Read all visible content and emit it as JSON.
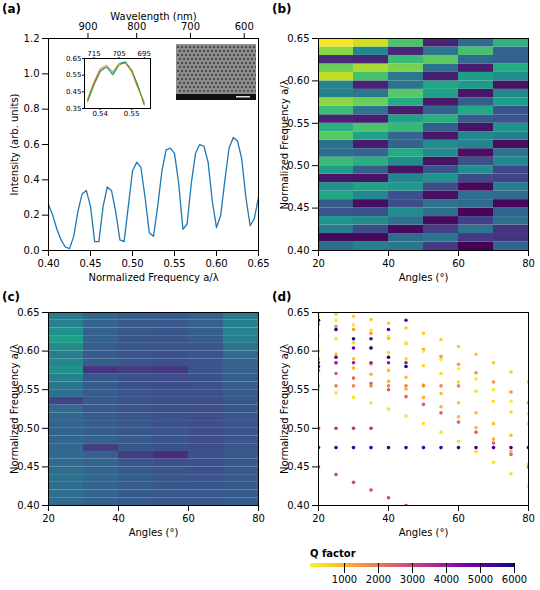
{
  "chart_data": [
    {
      "type": "line",
      "title": "(a)",
      "x_label": "Normalized Frequency a/λ",
      "y_label": "Intensity (arb. units)",
      "x2_label": "Wavelength (nm)",
      "xlim": [
        0.4,
        0.65
      ],
      "xticks": [
        {
          "value": 0.4,
          "label": "0.40"
        },
        0.45,
        {
          "value": 0.5,
          "label": "0.50"
        },
        0.55,
        {
          "value": 0.6,
          "label": "0.60"
        },
        0.65
      ],
      "x2ticks": [
        {
          "value": 0.447,
          "label": "900"
        },
        {
          "value": 0.505,
          "label": "800"
        },
        {
          "value": 0.569,
          "label": "700"
        },
        {
          "value": 0.633,
          "label": "600"
        }
      ],
      "ylim": [
        0,
        1.2
      ],
      "yticks": [
        {
          "value": 0,
          "label": "0.0"
        },
        0.2,
        0.4,
        0.6,
        0.8,
        {
          "value": 1,
          "label": "1.0"
        },
        1.2
      ],
      "color": "#1f77b4",
      "x": [
        0.4,
        0.405,
        0.41,
        0.415,
        0.42,
        0.425,
        0.43,
        0.435,
        0.44,
        0.445,
        0.45,
        0.455,
        0.46,
        0.465,
        0.47,
        0.475,
        0.48,
        0.485,
        0.49,
        0.495,
        0.5,
        0.505,
        0.51,
        0.515,
        0.52,
        0.525,
        0.53,
        0.535,
        0.54,
        0.545,
        0.55,
        0.555,
        0.56,
        0.565,
        0.57,
        0.575,
        0.58,
        0.585,
        0.59,
        0.595,
        0.6,
        0.605,
        0.61,
        0.615,
        0.62,
        0.625,
        0.63,
        0.635,
        0.64,
        0.645,
        0.65
      ],
      "values": [
        0.26,
        0.2,
        0.12,
        0.06,
        0.02,
        0.01,
        0.08,
        0.22,
        0.32,
        0.34,
        0.25,
        0.05,
        0.05,
        0.25,
        0.36,
        0.34,
        0.22,
        0.06,
        0.05,
        0.25,
        0.45,
        0.5,
        0.47,
        0.3,
        0.1,
        0.08,
        0.25,
        0.45,
        0.57,
        0.58,
        0.55,
        0.38,
        0.12,
        0.15,
        0.38,
        0.55,
        0.6,
        0.59,
        0.5,
        0.28,
        0.13,
        0.2,
        0.4,
        0.58,
        0.64,
        0.62,
        0.52,
        0.3,
        0.14,
        0.18,
        0.3
      ]
    },
    {
      "type": "line",
      "xlim": [
        0.535,
        0.556
      ],
      "xticks": [
        0.54,
        0.55
      ],
      "x2ticks": [
        {
          "value": 0.538,
          "label": "715"
        },
        {
          "value": 0.546,
          "label": "705"
        },
        {
          "value": 0.554,
          "label": "695"
        }
      ],
      "ylim": [
        0.35,
        0.65
      ],
      "yticks": [
        0.35,
        0.45,
        0.55,
        0.65
      ],
      "x": [
        0.536,
        0.538,
        0.54,
        0.542,
        0.544,
        0.546,
        0.548,
        0.55,
        0.552,
        0.554
      ],
      "series": [
        {
          "color": "#1f77b4",
          "values": [
            0.4,
            0.5,
            0.58,
            0.6,
            0.56,
            0.62,
            0.63,
            0.58,
            0.48,
            0.38
          ]
        },
        {
          "color": "#ff7f0e",
          "values": [
            0.41,
            0.51,
            0.59,
            0.61,
            0.57,
            0.62,
            0.62,
            0.57,
            0.47,
            0.39
          ]
        },
        {
          "color": "#2ca02c",
          "values": [
            0.39,
            0.49,
            0.57,
            0.6,
            0.55,
            0.61,
            0.63,
            0.58,
            0.49,
            0.37
          ]
        }
      ]
    },
    {
      "type": "heatmap",
      "title": "(b)",
      "x_label": "Angles (°)",
      "y_label": "Normalized Frequency a/λ",
      "xlim": [
        20,
        80
      ],
      "xticks": [
        20,
        40,
        60,
        80
      ],
      "ylim": [
        0.4,
        0.65
      ],
      "yticks": [
        {
          "value": 0.4,
          "label": "0.40"
        },
        0.45,
        {
          "value": 0.5,
          "label": "0.50"
        },
        0.55,
        {
          "value": 0.6,
          "label": "0.60"
        },
        0.65
      ],
      "x_edges": [
        20,
        30,
        40,
        50,
        60,
        70,
        80
      ],
      "y_edges": [
        0.4,
        0.41,
        0.42,
        0.43,
        0.44,
        0.45,
        0.46,
        0.47,
        0.48,
        0.49,
        0.5,
        0.51,
        0.52,
        0.53,
        0.54,
        0.55,
        0.56,
        0.57,
        0.58,
        0.59,
        0.6,
        0.61,
        0.62,
        0.63,
        0.64,
        0.65
      ],
      "cells": [
        [
          0.38,
          0.43,
          0.41,
          0.21,
          0.07,
          0.35
        ],
        [
          0.09,
          0.09,
          0.37,
          0.4,
          0.21,
          0.2
        ],
        [
          0.42,
          0.26,
          0.09,
          0.23,
          0.4,
          0.2
        ],
        [
          0.51,
          0.48,
          0.39,
          0.09,
          0.23,
          0.38
        ],
        [
          0.29,
          0.28,
          0.48,
          0.38,
          0.08,
          0.34
        ],
        [
          0.3,
          0.1,
          0.27,
          0.39,
          0.37,
          0.08
        ],
        [
          0.57,
          0.46,
          0.28,
          0.1,
          0.38,
          0.36
        ],
        [
          0.5,
          0.56,
          0.52,
          0.27,
          0.09,
          0.43
        ],
        [
          0.12,
          0.11,
          0.46,
          0.51,
          0.26,
          0.24
        ],
        [
          0.54,
          0.32,
          0.11,
          0.29,
          0.49,
          0.25
        ],
        [
          0.65,
          0.61,
          0.48,
          0.11,
          0.28,
          0.46
        ],
        [
          0.37,
          0.35,
          0.59,
          0.47,
          0.1,
          0.4
        ],
        [
          0.38,
          0.13,
          0.34,
          0.48,
          0.45,
          0.1
        ],
        [
          0.7,
          0.56,
          0.34,
          0.12,
          0.46,
          0.43
        ],
        [
          0.61,
          0.68,
          0.64,
          0.32,
          0.11,
          0.51
        ],
        [
          0.15,
          0.14,
          0.55,
          0.61,
          0.31,
          0.29
        ],
        [
          0.65,
          0.4,
          0.13,
          0.34,
          0.58,
          0.29
        ],
        [
          0.78,
          0.73,
          0.59,
          0.13,
          0.32,
          0.54
        ],
        [
          0.44,
          0.41,
          0.7,
          0.55,
          0.12,
          0.47
        ],
        [
          0.45,
          0.15,
          0.4,
          0.57,
          0.53,
          0.11
        ],
        [
          0.84,
          0.67,
          0.41,
          0.14,
          0.54,
          0.49
        ],
        [
          0.73,
          0.81,
          0.75,
          0.39,
          0.13,
          0.59
        ],
        [
          0.18,
          0.16,
          0.65,
          0.71,
          0.36,
          0.33
        ],
        [
          0.77,
          0.46,
          0.16,
          0.4,
          0.67,
          0.34
        ],
        [
          0.92,
          0.86,
          0.68,
          0.15,
          0.37,
          0.62
        ]
      ]
    },
    {
      "type": "heatmap",
      "title": "(c)",
      "x_label": "Angles (°)",
      "y_label": "Normalized Frequency a/λ",
      "xlim": [
        20,
        80
      ],
      "xticks": [
        20,
        40,
        60,
        80
      ],
      "ylim": [
        0.4,
        0.65
      ],
      "yticks": [
        {
          "value": 0.4,
          "label": "0.40"
        },
        0.45,
        {
          "value": 0.5,
          "label": "0.50"
        },
        0.55,
        {
          "value": 0.6,
          "label": "0.60"
        },
        0.65
      ],
      "x_edges": [
        20,
        30,
        40,
        50,
        60,
        70,
        80
      ],
      "y_edges": [
        0.4,
        0.41,
        0.42,
        0.43,
        0.44,
        0.45,
        0.46,
        0.47,
        0.48,
        0.49,
        0.5,
        0.51,
        0.52,
        0.53,
        0.54,
        0.55,
        0.56,
        0.57,
        0.58,
        0.59,
        0.6,
        0.61,
        0.62,
        0.63,
        0.64,
        0.65
      ],
      "cells": [
        [
          0.36,
          0.33,
          0.31,
          0.3,
          0.3,
          0.32
        ],
        [
          0.37,
          0.34,
          0.31,
          0.3,
          0.3,
          0.31
        ],
        [
          0.38,
          0.34,
          0.32,
          0.3,
          0.29,
          0.31
        ],
        [
          0.38,
          0.35,
          0.32,
          0.29,
          0.29,
          0.31
        ],
        [
          0.37,
          0.35,
          0.31,
          0.29,
          0.28,
          0.3
        ],
        [
          0.36,
          0.34,
          0.3,
          0.28,
          0.28,
          0.3
        ],
        [
          0.36,
          0.33,
          0.22,
          0.18,
          0.28,
          0.3
        ],
        [
          0.35,
          0.22,
          0.3,
          0.28,
          0.27,
          0.29
        ],
        [
          0.35,
          0.33,
          0.31,
          0.29,
          0.27,
          0.29
        ],
        [
          0.34,
          0.32,
          0.3,
          0.29,
          0.27,
          0.29
        ],
        [
          0.34,
          0.32,
          0.3,
          0.28,
          0.27,
          0.29
        ],
        [
          0.35,
          0.31,
          0.29,
          0.28,
          0.27,
          0.3
        ],
        [
          0.36,
          0.31,
          0.29,
          0.28,
          0.27,
          0.3
        ],
        [
          0.24,
          0.31,
          0.29,
          0.28,
          0.27,
          0.3
        ],
        [
          0.38,
          0.32,
          0.29,
          0.28,
          0.28,
          0.31
        ],
        [
          0.4,
          0.31,
          0.28,
          0.27,
          0.28,
          0.31
        ],
        [
          0.44,
          0.3,
          0.28,
          0.27,
          0.28,
          0.32
        ],
        [
          0.5,
          0.2,
          0.22,
          0.21,
          0.29,
          0.33
        ],
        [
          0.46,
          0.32,
          0.29,
          0.28,
          0.29,
          0.34
        ],
        [
          0.42,
          0.31,
          0.29,
          0.28,
          0.29,
          0.36
        ],
        [
          0.48,
          0.32,
          0.3,
          0.29,
          0.3,
          0.4
        ],
        [
          0.55,
          0.33,
          0.3,
          0.29,
          0.31,
          0.43
        ],
        [
          0.5,
          0.33,
          0.3,
          0.29,
          0.32,
          0.45
        ],
        [
          0.44,
          0.34,
          0.31,
          0.3,
          0.33,
          0.44
        ],
        [
          0.42,
          0.35,
          0.32,
          0.31,
          0.34,
          0.42
        ]
      ]
    },
    {
      "type": "scatter",
      "title": "(d)",
      "x_label": "Angles (°)",
      "y_label": "Normalized Frequency a/λ",
      "xlim": [
        20,
        80
      ],
      "xticks": [
        20,
        40,
        60,
        80
      ],
      "ylim": [
        0.4,
        0.65
      ],
      "yticks": [
        {
          "value": 0.4,
          "label": "0.40"
        },
        0.45,
        {
          "value": 0.5,
          "label": "0.50"
        },
        0.55,
        {
          "value": 0.6,
          "label": "0.60"
        },
        0.65
      ],
      "colorbar": {
        "label": "Q factor",
        "lim": [
          0,
          6000
        ],
        "ticks": [
          1000,
          2000,
          3000,
          4000,
          5000,
          6000
        ]
      },
      "series": [
        {
          "q": 600,
          "x": [
            20,
            25,
            30,
            35,
            40,
            45,
            50,
            55,
            60,
            65,
            70,
            75,
            80
          ],
          "values": [
            0.65,
            0.648,
            0.645,
            0.641,
            0.636,
            0.63,
            0.623,
            0.615,
            0.606,
            0.596,
            0.585,
            0.573,
            0.56
          ]
        },
        {
          "q": 1500,
          "x": [
            20,
            25,
            30,
            35,
            40,
            45,
            50,
            55,
            60,
            65,
            70,
            75,
            80
          ],
          "values": [
            0.635,
            0.632,
            0.628,
            0.623,
            0.617,
            0.61,
            0.602,
            0.593,
            0.583,
            0.572,
            0.56,
            0.547,
            0.533
          ]
        },
        {
          "q": 400,
          "x": [
            20,
            25,
            30,
            35,
            40,
            45,
            50,
            55,
            60,
            65,
            70,
            75,
            80
          ],
          "values": [
            0.62,
            0.616,
            0.611,
            0.605,
            0.598,
            0.59,
            0.581,
            0.571,
            0.56,
            0.548,
            0.535,
            0.521,
            0.506
          ]
        },
        {
          "q": 800,
          "x": [
            20,
            25,
            30,
            35,
            40,
            45,
            50,
            55,
            60,
            65,
            70,
            75,
            80
          ],
          "values": [
            0.6,
            0.596,
            0.59,
            0.583,
            0.575,
            0.566,
            0.556,
            0.545,
            0.533,
            0.52,
            0.506,
            0.491,
            0.475
          ]
        },
        {
          "q": 2500,
          "x": [
            20,
            25,
            30,
            35,
            40,
            45,
            50,
            55,
            60,
            65,
            70,
            75,
            80
          ],
          "values": [
            0.575,
            0.571,
            0.565,
            0.558,
            0.55,
            0.541,
            0.531,
            0.52,
            0.508,
            0.495,
            0.481,
            0.466,
            0.45
          ]
        },
        {
          "q": 300,
          "x": [
            20,
            25,
            30,
            35,
            40,
            45,
            50,
            55,
            60,
            65,
            70,
            75,
            80
          ],
          "values": [
            0.55,
            0.546,
            0.54,
            0.533,
            0.525,
            0.516,
            0.506,
            0.495,
            0.483,
            0.47,
            0.456,
            0.441,
            0.425
          ]
        },
        {
          "q": 200,
          "x": [
            20,
            25,
            30,
            35,
            40,
            45,
            50,
            55,
            60,
            65,
            70,
            75,
            80
          ],
          "values": [
            0.645,
            0.64,
            0.634,
            0.627,
            0.619,
            0.61,
            0.6,
            0.589,
            0.577,
            0.564,
            0.55,
            0.535,
            0.519
          ]
        },
        {
          "q": 1000,
          "x": [
            20,
            25,
            30,
            35,
            40,
            45,
            50,
            55,
            60,
            65,
            70,
            75,
            80
          ],
          "values": [
            0.59,
            0.585,
            0.578,
            0.57,
            0.561,
            0.551,
            0.54,
            0.528,
            0.515,
            0.501,
            0.486,
            0.47,
            0.453
          ]
        },
        {
          "q": 5500,
          "x": [
            20,
            25,
            30,
            35,
            40,
            45,
            50,
            55,
            60,
            65,
            70,
            75,
            80
          ],
          "values": [
            0.475,
            0.475,
            0.475,
            0.475,
            0.475,
            0.475,
            0.475,
            0.475,
            0.475,
            0.475,
            0.475,
            0.475,
            0.475
          ]
        },
        {
          "q": 1800,
          "x": [
            20,
            25,
            30,
            35,
            40,
            45,
            50,
            55,
            60
          ],
          "values": [
            0.555,
            0.555,
            0.555,
            0.555,
            0.555,
            0.555,
            0.555,
            0.555,
            0.555
          ]
        },
        {
          "q": 4000,
          "x": [
            20,
            25,
            30,
            35,
            40,
            45
          ],
          "values": [
            0.585,
            0.585,
            0.585,
            0.585,
            0.585,
            0.585
          ]
        },
        {
          "q": 6000,
          "x": [
            20,
            25,
            30,
            35,
            40,
            45
          ],
          "values": [
            0.64,
            0.628,
            0.616,
            0.604,
            0.592,
            0.58
          ]
        },
        {
          "q": 5000,
          "x": [
            20,
            25,
            30,
            35,
            40,
            45
          ],
          "values": [
            0.58,
            0.592,
            0.604,
            0.616,
            0.628,
            0.64
          ]
        },
        {
          "q": 3000,
          "x": [
            20,
            25,
            30,
            35,
            40,
            45
          ],
          "values": [
            0.45,
            0.44,
            0.43,
            0.42,
            0.41,
            0.4
          ]
        },
        {
          "q": 3500,
          "x": [
            20,
            25,
            30,
            35
          ],
          "values": [
            0.5,
            0.5,
            0.5,
            0.5
          ]
        }
      ]
    }
  ]
}
